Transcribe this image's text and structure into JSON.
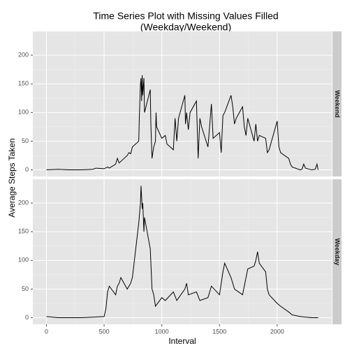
{
  "chart_data": {
    "type": "line",
    "title": [
      "Time Series Plot with Missing Values Filled",
      "(Weekday/Weekend)"
    ],
    "x_label": "Interval",
    "y_label": "Average Steps Taken",
    "color": "#000000",
    "grid": true,
    "xlim": [
      -118,
      2473
    ],
    "xticks": [
      0,
      500,
      1000,
      1500,
      2000
    ],
    "ylim": [
      -11.5,
      241.5
    ],
    "yticks": [
      0,
      50,
      100,
      150,
      200
    ],
    "panels": [
      {
        "strip": "Weekend",
        "x": [
          0,
          100,
          200,
          300,
          400,
          430,
          500,
          530,
          545,
          600,
          615,
          630,
          700,
          715,
          730,
          745,
          800,
          805,
          815,
          820,
          825,
          830,
          835,
          845,
          850,
          900,
          905,
          915,
          930,
          945,
          950,
          955,
          1000,
          1030,
          1045,
          1100,
          1115,
          1130,
          1145,
          1200,
          1205,
          1215,
          1230,
          1245,
          1300,
          1315,
          1330,
          1345,
          1400,
          1430,
          1445,
          1500,
          1515,
          1530,
          1545,
          1600,
          1615,
          1630,
          1645,
          1700,
          1715,
          1730,
          1745,
          1800,
          1815,
          1830,
          1845,
          1900,
          1915,
          1930,
          2000,
          2005,
          2015,
          2030,
          2100,
          2115,
          2130,
          2200,
          2215,
          2230,
          2245,
          2300,
          2330,
          2345,
          2355
        ],
        "values": [
          0,
          1,
          0,
          0,
          1,
          3,
          2,
          5,
          3,
          10,
          20,
          12,
          25,
          30,
          28,
          40,
          50,
          90,
          150,
          160,
          120,
          165,
          130,
          160,
          100,
          140,
          80,
          20,
          40,
          50,
          100,
          75,
          55,
          60,
          45,
          35,
          90,
          50,
          90,
          130,
          80,
          100,
          70,
          100,
          120,
          20,
          90,
          75,
          40,
          115,
          55,
          65,
          30,
          95,
          100,
          130,
          110,
          80,
          90,
          110,
          75,
          60,
          90,
          50,
          80,
          50,
          60,
          55,
          30,
          35,
          85,
          70,
          40,
          30,
          20,
          10,
          5,
          0,
          1,
          10,
          3,
          0,
          1,
          10,
          0
        ]
      },
      {
        "strip": "Weekday",
        "x": [
          0,
          100,
          200,
          300,
          400,
          500,
          515,
          530,
          545,
          600,
          615,
          630,
          645,
          700,
          715,
          730,
          745,
          800,
          815,
          820,
          830,
          835,
          845,
          850,
          900,
          915,
          930,
          945,
          1000,
          1030,
          1100,
          1130,
          1200,
          1215,
          1230,
          1300,
          1330,
          1400,
          1430,
          1500,
          1530,
          1545,
          1600,
          1630,
          1700,
          1730,
          1745,
          1800,
          1815,
          1830,
          1845,
          1900,
          1915,
          1930,
          2000,
          2030,
          2100,
          2130,
          2200,
          2300,
          2355
        ],
        "values": [
          2,
          0,
          0,
          0,
          1,
          2,
          15,
          45,
          55,
          40,
          55,
          60,
          70,
          50,
          55,
          60,
          70,
          165,
          200,
          230,
          190,
          200,
          150,
          175,
          120,
          50,
          40,
          20,
          35,
          30,
          45,
          30,
          50,
          60,
          40,
          45,
          30,
          35,
          55,
          40,
          80,
          95,
          70,
          50,
          40,
          70,
          85,
          90,
          100,
          115,
          95,
          80,
          50,
          40,
          25,
          20,
          10,
          5,
          2,
          0,
          0
        ]
      }
    ]
  }
}
